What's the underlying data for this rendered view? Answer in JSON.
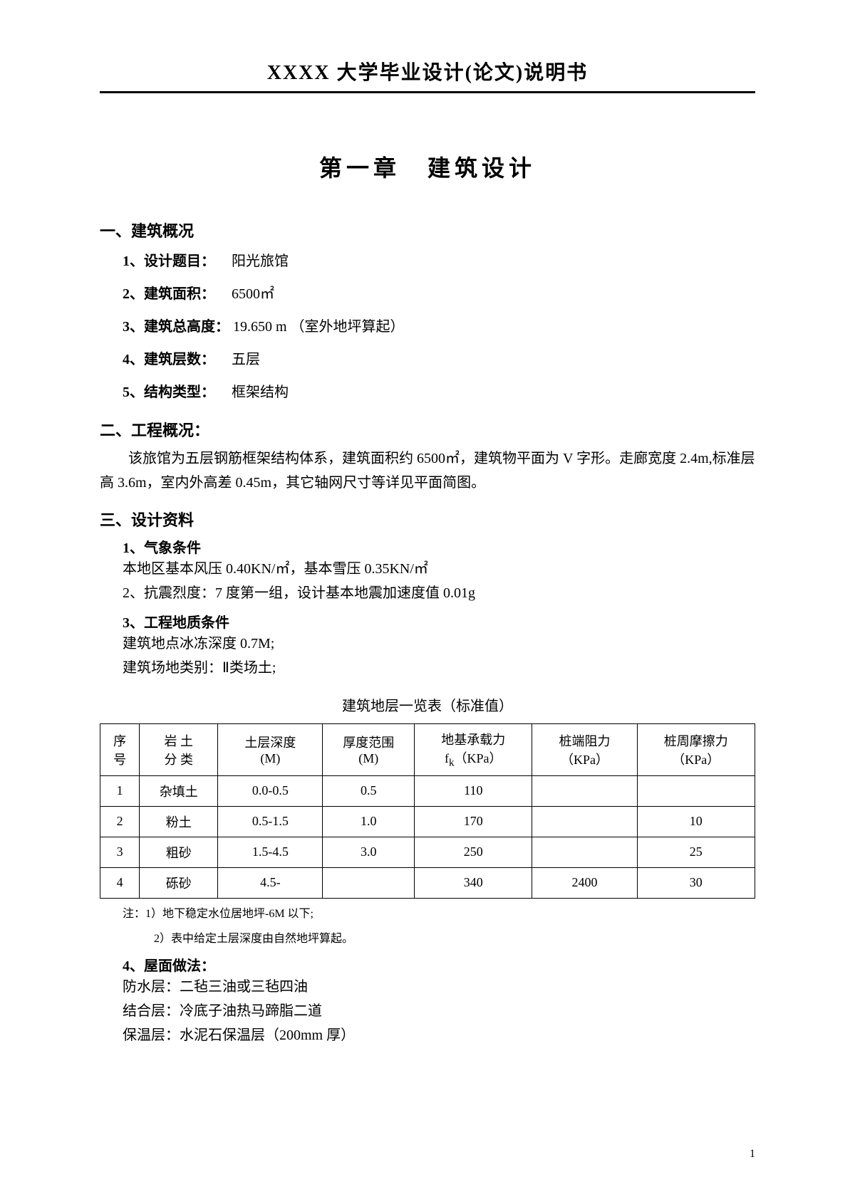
{
  "header": {
    "title": "XXXX 大学毕业设计(论文)说明书"
  },
  "chapter": {
    "title": "第一章　建筑设计"
  },
  "section1": {
    "title": "一、建筑概况",
    "item1_label": "1、设计题目：",
    "item1_value": "阳光旅馆",
    "item2_label": "2、建筑面积：",
    "item2_value": "6500㎡",
    "item3_label": "3、建筑总高度：",
    "item3_value": "19.650 m （室外地坪算起）",
    "item4_label": "4、建筑层数：",
    "item4_value": "五层",
    "item5_label": "5、结构类型：",
    "item5_value": "框架结构"
  },
  "section2": {
    "title": "二、工程概况：",
    "para": "该旅馆为五层钢筋框架结构体系，建筑面积约 6500㎡，建筑物平面为 V 字形。走廊宽度 2.4m,标准层高 3.6m，室内外高差 0.45m，其它轴网尺寸等详见平面简图。"
  },
  "section3": {
    "title": "三、设计资料",
    "sub1_title": "1、气象条件",
    "sub1_line1": "本地区基本风压 0.40KN/㎡，基本雪压 0.35KN/㎡",
    "sub2_line": "2、抗震烈度：7 度第一组，设计基本地震加速度值 0.01g",
    "sub3_title": "3、工程地质条件",
    "sub3_line1": "建筑地点冰冻深度 0.7M;",
    "sub3_line2": "建筑场地类别：Ⅱ类场土;",
    "table_caption": "建筑地层一览表（标准值）",
    "table": {
      "columns": [
        {
          "l1": "序",
          "l2": "号"
        },
        {
          "l1": "岩 土",
          "l2": "分 类"
        },
        {
          "l1": "土层深度",
          "l2": "(M)"
        },
        {
          "l1": "厚度范围",
          "l2": "(M)"
        },
        {
          "l1": "地基承载力",
          "l2_html": "f<sub>k</sub>（KPa）"
        },
        {
          "l1": "桩端阻力",
          "l2": "（KPa）"
        },
        {
          "l1": "桩周摩擦力",
          "l2": "（KPa）"
        }
      ],
      "rows": [
        [
          "1",
          "杂填土",
          "0.0-0.5",
          "0.5",
          "110",
          "",
          ""
        ],
        [
          "2",
          "粉土",
          "0.5-1.5",
          "1.0",
          "170",
          "",
          "10"
        ],
        [
          "3",
          "粗砂",
          "1.5-4.5",
          "3.0",
          "250",
          "",
          "25"
        ],
        [
          "4",
          "砾砂",
          "4.5-",
          "",
          "340",
          "2400",
          "30"
        ]
      ],
      "col_widths": [
        "6%",
        "12%",
        "16%",
        "14%",
        "18%",
        "16%",
        "18%"
      ]
    },
    "note1": "注：1）地下稳定水位居地坪-6M 以下;",
    "note2": "2）表中给定土层深度由自然地坪算起。",
    "sub4_title": "4、屋面做法：",
    "sub4_line1": "防水层：二毡三油或三毡四油",
    "sub4_line2": "结合层：冷底子油热马蹄脂二道",
    "sub4_line3": "保温层：水泥石保温层（200mm 厚）"
  },
  "footer": {
    "page": "1"
  }
}
